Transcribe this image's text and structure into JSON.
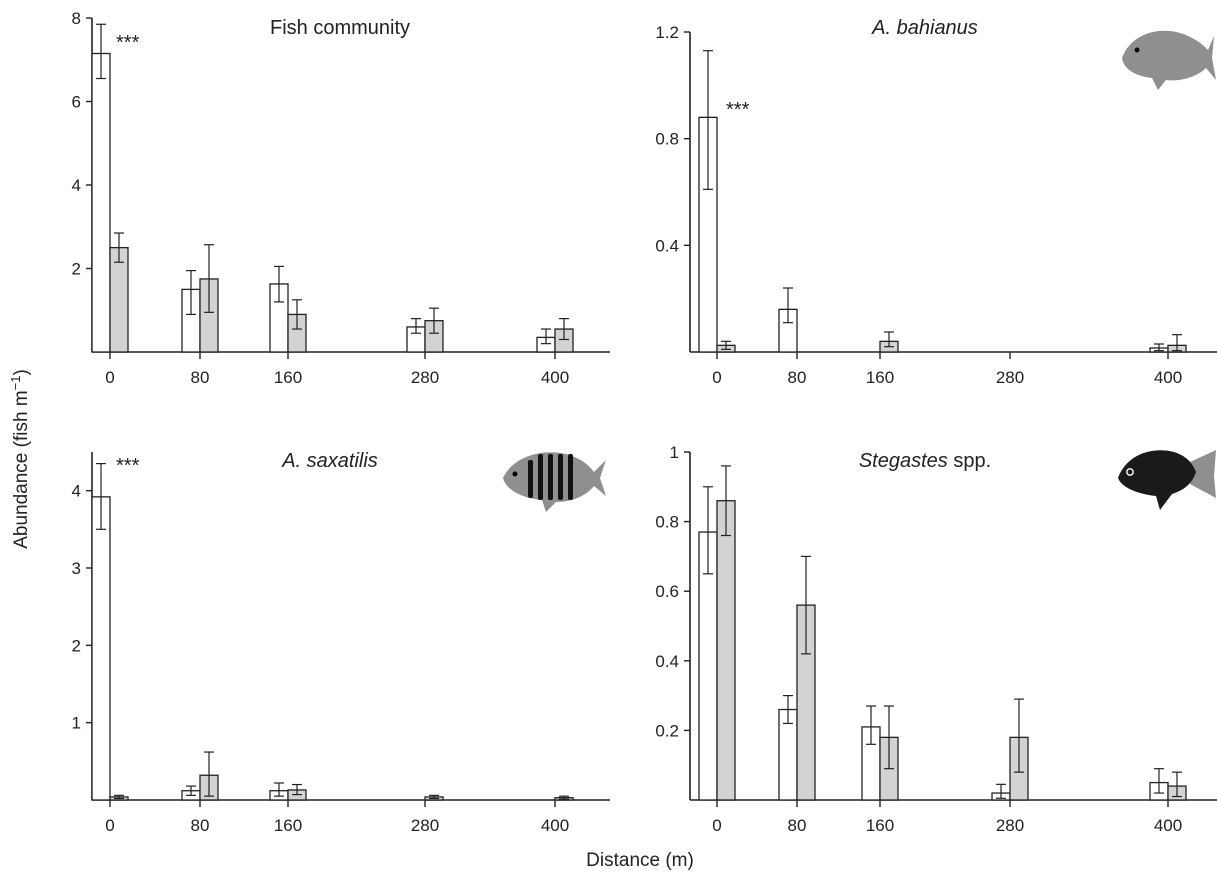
{
  "figure": {
    "shared_ylabel_main": "Abundance (fish m",
    "shared_ylabel_sup": "−1",
    "shared_ylabel_end": ")",
    "shared_xlabel": "Distance (m)"
  },
  "colors": {
    "open_bar": "#ffffff",
    "shaded_bar": "#d3d3d3",
    "stroke": "#222222",
    "fish_grey": "#8f8f8f",
    "fish_black": "#1a1a1a"
  },
  "chart_data": [
    {
      "type": "bar",
      "panel": "top-left",
      "title": "Fish community",
      "title_italic": "",
      "title_suffix": "",
      "categories": [
        "0",
        "80",
        "160",
        "280",
        "400"
      ],
      "x": [
        0,
        80,
        160,
        280,
        400
      ],
      "ylim": [
        0,
        8
      ],
      "yticks": [
        2,
        4,
        6,
        8
      ],
      "ytick_labels": [
        "2",
        "4",
        "6",
        "8"
      ],
      "series": [
        {
          "style": "open",
          "values": [
            7.15,
            1.5,
            1.63,
            0.6,
            0.35
          ],
          "err_low": [
            6.55,
            0.9,
            1.2,
            0.45,
            0.2
          ],
          "err_high": [
            7.85,
            1.95,
            2.05,
            0.8,
            0.55
          ]
        },
        {
          "style": "shaded",
          "values": [
            2.5,
            1.75,
            0.9,
            0.75,
            0.55
          ],
          "err_low": [
            2.15,
            0.95,
            0.55,
            0.45,
            0.3
          ],
          "err_high": [
            2.85,
            2.57,
            1.25,
            1.05,
            0.8
          ]
        }
      ],
      "annotations": [
        {
          "text": "***",
          "x": 0,
          "y": 7.55
        }
      ],
      "icon": ""
    },
    {
      "type": "bar",
      "panel": "top-right",
      "title": "",
      "title_italic": "A. bahianus",
      "title_suffix": "",
      "categories": [
        "0",
        "80",
        "160",
        "280",
        "400"
      ],
      "x": [
        0,
        80,
        160,
        280,
        400
      ],
      "ylim": [
        0,
        1.2
      ],
      "yticks": [
        0.4,
        0.8,
        1.2
      ],
      "ytick_labels": [
        "0.4",
        "0.8",
        "1.2"
      ],
      "series": [
        {
          "style": "open",
          "values": [
            0.88,
            0.16,
            0,
            0,
            0.015
          ],
          "err_low": [
            0.61,
            0.11,
            0,
            0,
            0.005
          ],
          "err_high": [
            1.13,
            0.24,
            0,
            0,
            0.03
          ]
        },
        {
          "style": "shaded",
          "values": [
            0.025,
            0,
            0.04,
            0,
            0.025
          ],
          "err_low": [
            0.01,
            0,
            0.02,
            0,
            0.005
          ],
          "err_high": [
            0.04,
            0,
            0.075,
            0,
            0.065
          ]
        }
      ],
      "annotations": [
        {
          "text": "***",
          "x": 0,
          "y": 0.9
        }
      ],
      "icon": "surgeonfish-icon"
    },
    {
      "type": "bar",
      "panel": "bottom-left",
      "title": "",
      "title_italic": "A. saxatilis",
      "title_suffix": "",
      "categories": [
        "0",
        "80",
        "160",
        "280",
        "400"
      ],
      "x": [
        0,
        80,
        160,
        280,
        400
      ],
      "ylim": [
        0,
        4.5
      ],
      "yticks": [
        1,
        2,
        3,
        4
      ],
      "ytick_labels": [
        "1",
        "2",
        "3",
        "4"
      ],
      "series": [
        {
          "style": "open",
          "values": [
            3.92,
            0.12,
            0.12,
            0,
            0
          ],
          "err_low": [
            3.5,
            0.06,
            0.05,
            0,
            0
          ],
          "err_high": [
            4.35,
            0.18,
            0.22,
            0,
            0
          ]
        },
        {
          "style": "shaded",
          "values": [
            0.04,
            0.32,
            0.13,
            0.04,
            0.03
          ],
          "err_low": [
            0.02,
            0.05,
            0.07,
            0.02,
            0.01
          ],
          "err_high": [
            0.06,
            0.62,
            0.2,
            0.06,
            0.05
          ]
        }
      ],
      "annotations": [
        {
          "text": "***",
          "x": 0,
          "y": 4.0
        }
      ],
      "icon": "sergeant-major-icon"
    },
    {
      "type": "bar",
      "panel": "bottom-right",
      "title": "",
      "title_italic": "Stegastes",
      "title_suffix": " spp.",
      "categories": [
        "0",
        "80",
        "160",
        "280",
        "400"
      ],
      "x": [
        0,
        80,
        160,
        280,
        400
      ],
      "ylim": [
        0,
        1
      ],
      "yticks": [
        0.2,
        0.4,
        0.6,
        0.8,
        1
      ],
      "ytick_labels": [
        "0.2",
        "0.4",
        "0.6",
        "0.8",
        "1"
      ],
      "series": [
        {
          "style": "open",
          "values": [
            0.77,
            0.26,
            0.21,
            0.02,
            0.05
          ],
          "err_low": [
            0.65,
            0.22,
            0.16,
            0.005,
            0.02
          ],
          "err_high": [
            0.9,
            0.3,
            0.27,
            0.045,
            0.09
          ]
        },
        {
          "style": "shaded",
          "values": [
            0.86,
            0.56,
            0.18,
            0.18,
            0.04
          ],
          "err_low": [
            0.76,
            0.42,
            0.09,
            0.08,
            0.01
          ],
          "err_high": [
            0.96,
            0.7,
            0.27,
            0.29,
            0.08
          ]
        }
      ],
      "annotations": [],
      "icon": "damselfish-icon"
    }
  ]
}
